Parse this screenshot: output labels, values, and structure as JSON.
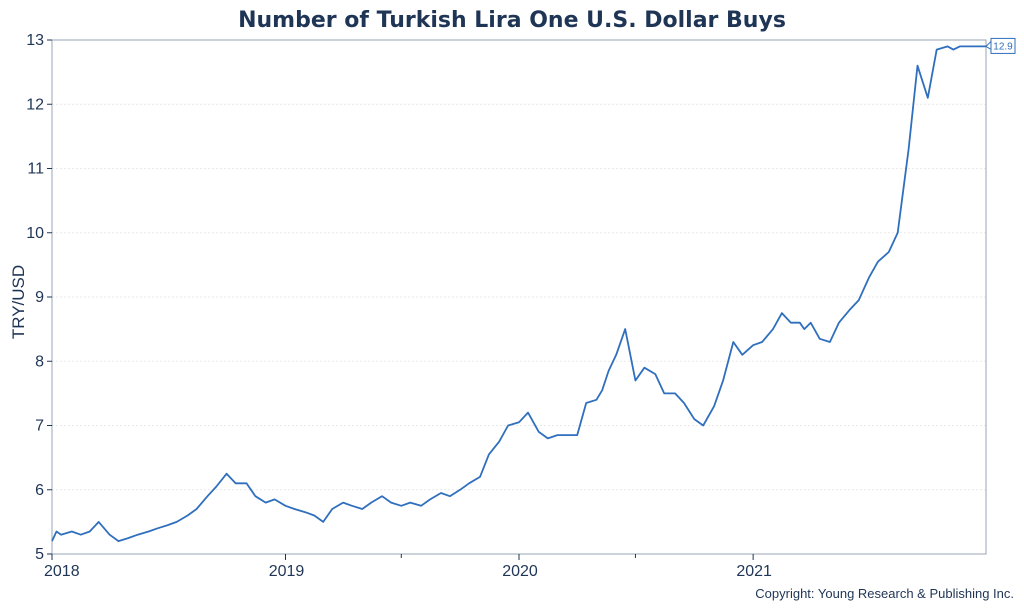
{
  "chart_data": {
    "type": "line",
    "title": "Number of Turkish Lira One U.S. Dollar Buys",
    "xlabel": "",
    "ylabel": "TRY/USD",
    "ylim": [
      5,
      13
    ],
    "xlim": [
      "2018-01-01",
      "2021-12-31"
    ],
    "yticks": [
      5,
      6,
      7,
      8,
      9,
      10,
      11,
      12,
      13
    ],
    "xticks": [
      {
        "label": "2018",
        "date": "2018-01-01"
      },
      {
        "label": "2019",
        "date": "2019-01-01"
      },
      {
        "label": "2020",
        "date": "2020-01-01"
      },
      {
        "label": "2021",
        "date": "2021-01-01"
      }
    ],
    "minor_xticks": [
      "2019-07-01",
      "2020-07-01"
    ],
    "grid": true,
    "legend": "none",
    "copyright": "Copyright: Young Research & Publishing Inc.",
    "last_value_label": "12.9",
    "colors": {
      "line": "#2f6fbd",
      "text": "#1f3556"
    },
    "series": [
      {
        "x": [
          "2018-01-01",
          "2018-01-08",
          "2018-01-15",
          "2018-02-01",
          "2018-02-15",
          "2018-03-01",
          "2018-03-15",
          "2018-04-01",
          "2018-04-15",
          "2018-05-01",
          "2018-05-15",
          "2018-06-01",
          "2018-06-15",
          "2018-07-01",
          "2018-07-15",
          "2018-08-01",
          "2018-08-15",
          "2018-09-01",
          "2018-09-15",
          "2018-10-01",
          "2018-10-15",
          "2018-11-01",
          "2018-11-15",
          "2018-12-01",
          "2018-12-15",
          "2019-01-01",
          "2019-01-15",
          "2019-02-01",
          "2019-02-15",
          "2019-03-01",
          "2019-03-15",
          "2019-04-01",
          "2019-04-15",
          "2019-05-01",
          "2019-05-15",
          "2019-06-01",
          "2019-06-15",
          "2019-07-01",
          "2019-07-15",
          "2019-08-01",
          "2019-08-15",
          "2019-09-01",
          "2019-09-15",
          "2019-10-01",
          "2019-10-15",
          "2019-11-01",
          "2019-11-15",
          "2019-12-01",
          "2019-12-15",
          "2020-01-01",
          "2020-01-15",
          "2020-02-01",
          "2020-02-15",
          "2020-03-01",
          "2020-03-15",
          "2020-04-01",
          "2020-04-15",
          "2020-05-01",
          "2020-05-10",
          "2020-05-20",
          "2020-06-01",
          "2020-06-15",
          "2020-07-01",
          "2020-07-15",
          "2020-08-01",
          "2020-08-15",
          "2020-09-01",
          "2020-09-15",
          "2020-10-01",
          "2020-10-15",
          "2020-11-01",
          "2020-11-15",
          "2020-12-01",
          "2020-12-15",
          "2021-01-01",
          "2021-01-15",
          "2021-02-01",
          "2021-02-15",
          "2021-03-01",
          "2021-03-15",
          "2021-03-22",
          "2021-04-01",
          "2021-04-15",
          "2021-05-01",
          "2021-05-15",
          "2021-06-01",
          "2021-06-15",
          "2021-07-01",
          "2021-07-15",
          "2021-08-01",
          "2021-08-15",
          "2021-09-01",
          "2021-09-15",
          "2021-10-01",
          "2021-10-15",
          "2021-11-01",
          "2021-11-10",
          "2021-11-20",
          "2021-11-25",
          "2021-12-01",
          "2021-12-05",
          "2021-12-10",
          "2021-12-15",
          "2021-12-20",
          "2021-12-31"
        ],
        "values": [
          5.2,
          5.35,
          5.3,
          5.35,
          5.3,
          5.35,
          5.5,
          5.3,
          5.2,
          5.25,
          5.3,
          5.35,
          5.4,
          5.45,
          5.5,
          5.6,
          5.7,
          5.9,
          6.05,
          6.25,
          6.1,
          6.1,
          5.9,
          5.8,
          5.85,
          5.75,
          5.7,
          5.65,
          5.6,
          5.5,
          5.7,
          5.8,
          5.75,
          5.7,
          5.8,
          5.9,
          5.8,
          5.75,
          5.8,
          5.75,
          5.85,
          5.95,
          5.9,
          6.0,
          6.1,
          6.2,
          6.55,
          6.75,
          7.0,
          7.05,
          7.2,
          6.9,
          6.8,
          6.85,
          6.85,
          6.85,
          7.35,
          7.4,
          7.55,
          7.85,
          8.1,
          8.5,
          7.7,
          7.9,
          7.8,
          7.5,
          7.5,
          7.35,
          7.1,
          7.0,
          7.3,
          7.7,
          8.3,
          8.1,
          8.25,
          8.3,
          8.5,
          8.75,
          8.6,
          8.6,
          8.5,
          8.6,
          8.35,
          8.3,
          8.6,
          8.8,
          8.95,
          9.3,
          9.55,
          9.7,
          10.0,
          11.3,
          12.6,
          12.1,
          12.85,
          12.9,
          12.85,
          12.9,
          12.9,
          12.9,
          12.9,
          12.9,
          12.9,
          12.9,
          12.9
        ]
      }
    ]
  }
}
